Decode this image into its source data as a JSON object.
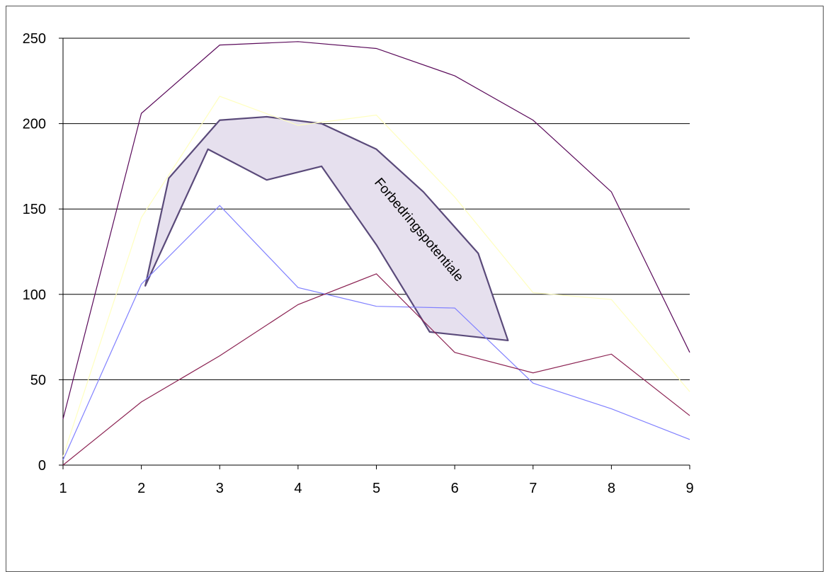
{
  "chart_data": {
    "type": "line",
    "title": "",
    "xlabel": "",
    "ylabel": "",
    "x": [
      1,
      2,
      3,
      4,
      5,
      6,
      7,
      8,
      9
    ],
    "ylim": [
      0,
      250
    ],
    "yticks": [
      0,
      50,
      100,
      150,
      200,
      250
    ],
    "grid": "horizontal",
    "legend": "none",
    "series": [
      {
        "color": "#5a0a5a",
        "values": [
          27,
          206,
          246,
          248,
          244,
          228,
          202,
          160,
          66
        ]
      },
      {
        "color": "#ffffc0",
        "values": [
          5,
          145,
          216,
          199,
          205,
          157,
          101,
          97,
          43
        ]
      },
      {
        "color": "#8080ff",
        "values": [
          3,
          106,
          152,
          104,
          93,
          92,
          48,
          33,
          15
        ]
      },
      {
        "color": "#8b2252",
        "values": [
          0,
          37,
          64,
          94,
          112,
          66,
          54,
          65,
          29
        ]
      }
    ],
    "annotation": {
      "text": "Forbedringspotentiale",
      "fill": "#e6e0ee",
      "stroke": "#5a4a7a",
      "polygon": [
        [
          2.05,
          105
        ],
        [
          2.35,
          168
        ],
        [
          3.0,
          202
        ],
        [
          3.6,
          204
        ],
        [
          4.3,
          200
        ],
        [
          5.0,
          185
        ],
        [
          5.6,
          160
        ],
        [
          6.3,
          124
        ],
        [
          6.68,
          73
        ],
        [
          5.68,
          78
        ],
        [
          5.0,
          129
        ],
        [
          4.3,
          175
        ],
        [
          3.6,
          167
        ],
        [
          2.85,
          185
        ],
        [
          2.05,
          105
        ]
      ]
    }
  }
}
